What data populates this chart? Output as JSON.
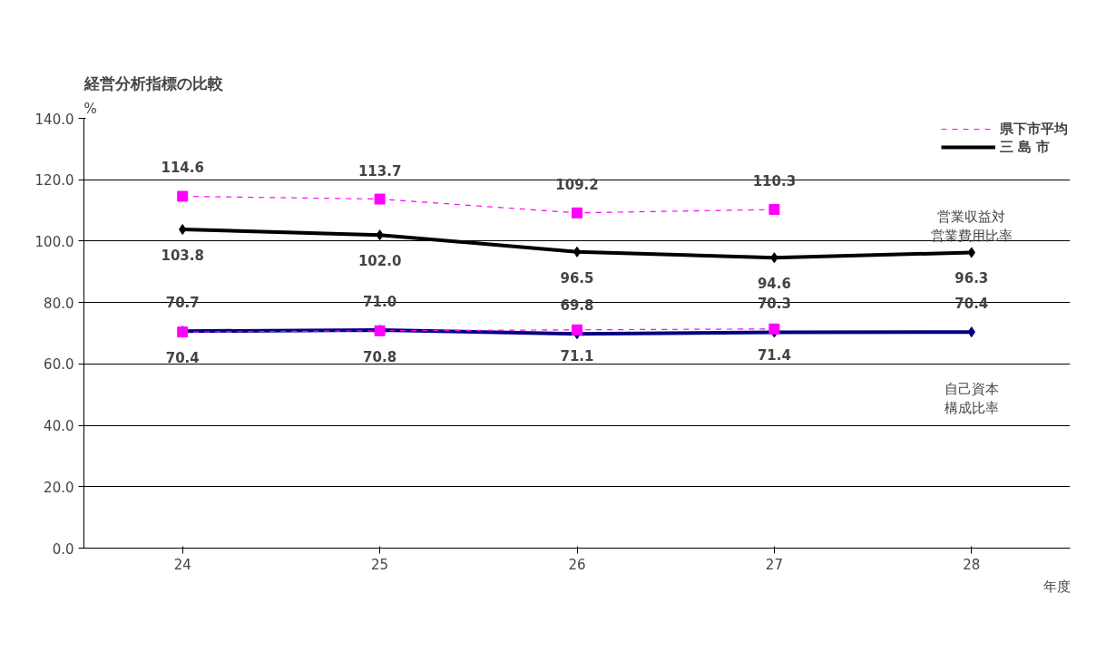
{
  "chart_data": {
    "type": "line",
    "title": "経営分析指標の比較",
    "xlabel": "年度",
    "ylabel": "%",
    "categories": [
      "24",
      "25",
      "26",
      "27",
      "28"
    ],
    "series": [
      {
        "name": "県下市平均",
        "color": "#ff00ff",
        "values": [
          114.6,
          113.7,
          109.2,
          110.3,
          null
        ],
        "value_labels": [
          "114.6",
          "113.7",
          "109.2",
          "110.3",
          null
        ],
        "line_style": "dashed",
        "marker": "square"
      },
      {
        "name": "三 島 市",
        "color": "#000000",
        "values": [
          103.8,
          102.0,
          96.5,
          94.6,
          96.3
        ],
        "value_labels": [
          "103.8",
          "102.0",
          "96.5",
          "94.6",
          "96.3"
        ],
        "line_style": "solid",
        "marker": "diamond"
      },
      {
        "color": "#000080",
        "values": [
          70.7,
          71.0,
          69.8,
          70.3,
          70.4
        ],
        "value_labels": [
          "70.7",
          "71.0",
          "69.8",
          "70.3",
          "70.4"
        ],
        "line_style": "solid",
        "marker": "diamond"
      },
      {
        "color": "#ff00ff",
        "values": [
          70.4,
          70.8,
          71.1,
          71.4,
          null
        ],
        "value_labels": [
          "70.4",
          "70.8",
          "71.1",
          "71.4",
          null
        ],
        "line_style": "dashed",
        "marker": "square"
      }
    ],
    "ylim": [
      0,
      140
    ],
    "yticks": [
      {
        "value": 0,
        "label": "0.0"
      },
      {
        "value": 20,
        "label": "20.0"
      },
      {
        "value": 40,
        "label": "40.0"
      },
      {
        "value": 60,
        "label": "60.0"
      },
      {
        "value": 80,
        "label": "80.0"
      },
      {
        "value": 100,
        "label": "100.0"
      },
      {
        "value": 120,
        "label": "120.0"
      },
      {
        "value": 140,
        "label": "140.0"
      }
    ],
    "annotations": [
      "営業収益対営業費用比率",
      "自己資本構成比率"
    ],
    "grid": "y",
    "legend": "top right"
  }
}
